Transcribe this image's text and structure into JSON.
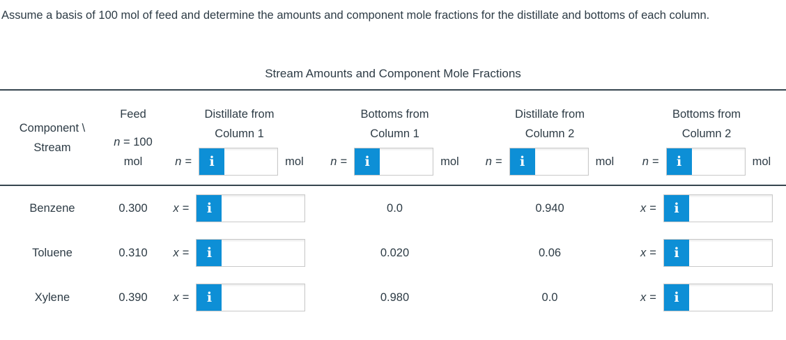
{
  "instructions": "Assume a basis of 100 mol of feed and determine the amounts and component mole fractions for the distillate and bottoms of each column.",
  "colors": {
    "accent_blue": "#0d8fd6",
    "text": "#2d3b45",
    "rule": "#36454f",
    "input_border": "#c9c9c9"
  },
  "icons": {
    "info": "i"
  },
  "table": {
    "title": "Stream Amounts and Component Mole Fractions",
    "corner_header": {
      "line1": "Component \\",
      "line2": "Stream"
    },
    "feed_header": {
      "label": "Feed",
      "symbol": "n",
      "equals_value": "= 100",
      "unit": "mol"
    },
    "symbols": {
      "n": "n",
      "x": "x",
      "equals": "=",
      "unit_mol": "mol"
    },
    "stream_headers": [
      {
        "line1": "Distillate from",
        "line2": "Column 1"
      },
      {
        "line1": "Bottoms from",
        "line2": "Column 1"
      },
      {
        "line1": "Distillate from",
        "line2": "Column 2"
      },
      {
        "line1": "Bottoms from",
        "line2": "Column 2"
      }
    ],
    "amount_inputs": [
      {
        "value": ""
      },
      {
        "value": ""
      },
      {
        "value": ""
      },
      {
        "value": ""
      }
    ],
    "rows": [
      {
        "component": "Benzene",
        "feed_x": "0.300",
        "distillate1_input": "",
        "bottoms1_x": "0.0",
        "distillate2_x": "0.940",
        "bottoms2_input": ""
      },
      {
        "component": "Toluene",
        "feed_x": "0.310",
        "distillate1_input": "",
        "bottoms1_x": "0.020",
        "distillate2_x": "0.06",
        "bottoms2_input": ""
      },
      {
        "component": "Xylene",
        "feed_x": "0.390",
        "distillate1_input": "",
        "bottoms1_x": "0.980",
        "distillate2_x": "0.0",
        "bottoms2_input": ""
      }
    ]
  }
}
